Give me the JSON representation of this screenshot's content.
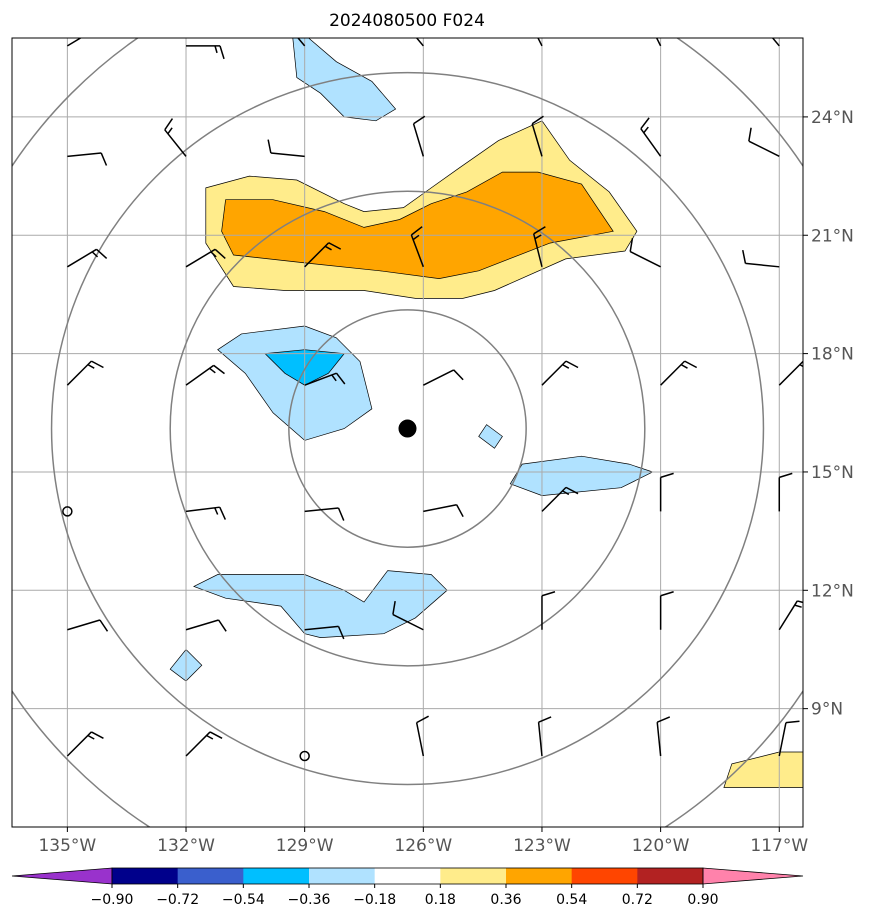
{
  "chart_data": {
    "type": "contour-map",
    "title": "2024080500 F024",
    "x_ticks": [
      {
        "lon": -135,
        "label": "135°W"
      },
      {
        "lon": -132,
        "label": "132°W"
      },
      {
        "lon": -129,
        "label": "129°W"
      },
      {
        "lon": -126,
        "label": "126°W"
      },
      {
        "lon": -123,
        "label": "123°W"
      },
      {
        "lon": -120,
        "label": "120°W"
      },
      {
        "lon": -117,
        "label": "117°W"
      }
    ],
    "y_ticks": [
      {
        "lat": 24,
        "label": "24°N"
      },
      {
        "lat": 21,
        "label": "21°N"
      },
      {
        "lat": 18,
        "label": "18°N"
      },
      {
        "lat": 15,
        "label": "15°N"
      },
      {
        "lat": 12,
        "label": "12°N"
      },
      {
        "lat": 9,
        "label": "9°N"
      }
    ],
    "lon_range": [
      -136.4,
      -116.4
    ],
    "lat_range": [
      6.0,
      26.0
    ],
    "grid": true,
    "center_marker": {
      "lon": -126.4,
      "lat": 16.1
    },
    "range_rings_deg": [
      3,
      6,
      9,
      12
    ],
    "colorbar": {
      "levels": [
        "−0.90",
        "−0.72",
        "−0.54",
        "−0.36",
        "−0.18",
        "0.18",
        "0.36",
        "0.54",
        "0.72",
        "0.90"
      ],
      "colors": [
        "#9932cc",
        "#00008b",
        "#3a5fcd",
        "#00bfff",
        "#b0e2ff",
        "#ffffff",
        "#ffec8b",
        "#ffa500",
        "#ff4500",
        "#b22222",
        "#ff82ab"
      ],
      "extend": "both"
    },
    "filled_regions": [
      {
        "level": "0.18 to 0.36",
        "color": "#ffec8b",
        "lonlat": [
          [
            -131.5,
            22.2
          ],
          [
            -130.4,
            22.5
          ],
          [
            -129.2,
            22.4
          ],
          [
            -128.0,
            21.8
          ],
          [
            -127.5,
            21.6
          ],
          [
            -126.5,
            21.7
          ],
          [
            -125.8,
            22.2
          ],
          [
            -125.1,
            22.7
          ],
          [
            -124.1,
            23.4
          ],
          [
            -123.0,
            23.9
          ],
          [
            -122.3,
            22.9
          ],
          [
            -121.3,
            22.1
          ],
          [
            -120.6,
            21.1
          ],
          [
            -120.9,
            20.6
          ],
          [
            -122.4,
            20.4
          ],
          [
            -124.2,
            19.6
          ],
          [
            -125.0,
            19.4
          ],
          [
            -126.2,
            19.4
          ],
          [
            -127.5,
            19.6
          ],
          [
            -129.5,
            19.6
          ],
          [
            -130.8,
            19.7
          ],
          [
            -131.5,
            20.8
          ]
        ]
      },
      {
        "level": "0.36 to 0.54",
        "color": "#ffa500",
        "lonlat": [
          [
            -131.0,
            21.9
          ],
          [
            -129.8,
            21.9
          ],
          [
            -128.5,
            21.6
          ],
          [
            -127.5,
            21.2
          ],
          [
            -126.6,
            21.4
          ],
          [
            -125.8,
            21.8
          ],
          [
            -124.9,
            22.1
          ],
          [
            -124.0,
            22.6
          ],
          [
            -123.1,
            22.6
          ],
          [
            -122.0,
            22.3
          ],
          [
            -121.2,
            21.1
          ],
          [
            -122.8,
            20.8
          ],
          [
            -124.6,
            20.1
          ],
          [
            -125.6,
            19.9
          ],
          [
            -127.1,
            20.1
          ],
          [
            -129.0,
            20.3
          ],
          [
            -130.8,
            20.5
          ],
          [
            -131.1,
            21.1
          ]
        ]
      },
      {
        "level": "-0.36 to -0.18",
        "color": "#b0e2ff",
        "lonlat": [
          [
            -128.9,
            26.0
          ],
          [
            -128.2,
            25.4
          ],
          [
            -127.3,
            24.9
          ],
          [
            -126.7,
            24.2
          ],
          [
            -127.2,
            23.9
          ],
          [
            -128.0,
            24.0
          ],
          [
            -128.6,
            24.6
          ],
          [
            -129.2,
            25.0
          ],
          [
            -129.3,
            26.0
          ]
        ]
      },
      {
        "level": "-0.36 to -0.18",
        "color": "#b0e2ff",
        "lonlat": [
          [
            -131.2,
            18.1
          ],
          [
            -130.6,
            18.5
          ],
          [
            -129.0,
            18.7
          ],
          [
            -128.2,
            18.4
          ],
          [
            -127.6,
            17.8
          ],
          [
            -127.3,
            16.6
          ],
          [
            -128.0,
            16.1
          ],
          [
            -129.0,
            15.8
          ],
          [
            -129.8,
            16.5
          ],
          [
            -130.5,
            17.5
          ]
        ]
      },
      {
        "level": "-0.54 to -0.36",
        "color": "#00bfff",
        "lonlat": [
          [
            -130.0,
            18.0
          ],
          [
            -129.0,
            18.1
          ],
          [
            -128.0,
            18.0
          ],
          [
            -128.4,
            17.5
          ],
          [
            -129.0,
            17.2
          ],
          [
            -129.5,
            17.5
          ]
        ]
      },
      {
        "level": "-0.36 to -0.18",
        "color": "#b0e2ff",
        "lonlat": [
          [
            -124.4,
            16.2
          ],
          [
            -124.0,
            15.9
          ],
          [
            -124.2,
            15.6
          ],
          [
            -124.6,
            15.9
          ]
        ]
      },
      {
        "level": "-0.36 to -0.18",
        "color": "#b0e2ff",
        "lonlat": [
          [
            -123.5,
            15.2
          ],
          [
            -122.0,
            15.4
          ],
          [
            -120.8,
            15.2
          ],
          [
            -120.2,
            15.0
          ],
          [
            -121.0,
            14.6
          ],
          [
            -123.0,
            14.4
          ],
          [
            -123.8,
            14.7
          ]
        ]
      },
      {
        "level": "-0.36 to -0.18",
        "color": "#b0e2ff",
        "lonlat": [
          [
            -131.8,
            12.1
          ],
          [
            -131.2,
            12.4
          ],
          [
            -129.0,
            12.4
          ],
          [
            -128.0,
            12.0
          ],
          [
            -127.5,
            11.7
          ],
          [
            -126.9,
            12.5
          ],
          [
            -125.8,
            12.4
          ],
          [
            -125.4,
            12.0
          ],
          [
            -126.2,
            11.3
          ],
          [
            -127.0,
            10.9
          ],
          [
            -128.6,
            10.8
          ],
          [
            -129.0,
            10.9
          ],
          [
            -129.6,
            11.6
          ],
          [
            -131.0,
            11.8
          ]
        ]
      },
      {
        "level": "-0.36 to -0.18",
        "color": "#b0e2ff",
        "lonlat": [
          [
            -132.0,
            10.5
          ],
          [
            -131.6,
            10.1
          ],
          [
            -132.0,
            9.7
          ],
          [
            -132.4,
            10.0
          ]
        ]
      },
      {
        "level": "0.18 to 0.36",
        "color": "#ffec8b",
        "lonlat": [
          [
            -118.2,
            7.6
          ],
          [
            -117.0,
            7.9
          ],
          [
            -116.4,
            7.9
          ],
          [
            -116.4,
            7.0
          ],
          [
            -118.4,
            7.0
          ]
        ]
      }
    ],
    "wind_barbs": [
      {
        "lon": -135,
        "lat": 25.8,
        "u": 5,
        "v": 3
      },
      {
        "lon": -132,
        "lat": 25.8,
        "u": 5,
        "v": 0
      },
      {
        "lon": -129,
        "lat": 25.8,
        "u": -5,
        "v": 6
      },
      {
        "lon": -126,
        "lat": 25.8,
        "u": -5,
        "v": 6
      },
      {
        "lon": -123,
        "lat": 25.8,
        "u": -4,
        "v": 8
      },
      {
        "lon": -120,
        "lat": 25.8,
        "u": -4,
        "v": 8
      },
      {
        "lon": -117,
        "lat": 25.8,
        "u": -5,
        "v": 6
      },
      {
        "lon": -135,
        "lat": 23.0,
        "u": 10,
        "v": 1
      },
      {
        "lon": -132,
        "lat": 23.0,
        "u": -4,
        "v": 5
      },
      {
        "lon": -129,
        "lat": 23.0,
        "u": -10,
        "v": 1
      },
      {
        "lon": -126,
        "lat": 23.0,
        "u": -3,
        "v": 10
      },
      {
        "lon": -123,
        "lat": 23.0,
        "u": -3,
        "v": 10
      },
      {
        "lon": -120,
        "lat": 23.0,
        "u": -5,
        "v": 7
      },
      {
        "lon": -117,
        "lat": 23.0,
        "u": -10,
        "v": 5
      },
      {
        "lon": -135,
        "lat": 20.2,
        "u": 5,
        "v": 3
      },
      {
        "lon": -132,
        "lat": 20.2,
        "u": 5,
        "v": 3
      },
      {
        "lon": -129,
        "lat": 20.2,
        "u": 5,
        "v": 5
      },
      {
        "lon": -126,
        "lat": 20.2,
        "u": -3,
        "v": 8
      },
      {
        "lon": -123,
        "lat": 20.2,
        "u": -2,
        "v": 8
      },
      {
        "lon": -120,
        "lat": 20.2,
        "u": -10,
        "v": 5
      },
      {
        "lon": -117,
        "lat": 20.2,
        "u": -10,
        "v": 1
      },
      {
        "lon": -135,
        "lat": 17.2,
        "u": 5,
        "v": 5
      },
      {
        "lon": -132,
        "lat": 17.2,
        "u": 7,
        "v": 5
      },
      {
        "lon": -129,
        "lat": 17.2,
        "u": 8,
        "v": 3
      },
      {
        "lon": -126,
        "lat": 17.2,
        "u": 10,
        "v": 5
      },
      {
        "lon": -123,
        "lat": 17.2,
        "u": 5,
        "v": 5
      },
      {
        "lon": -120,
        "lat": 17.2,
        "u": 5,
        "v": 5
      },
      {
        "lon": -117,
        "lat": 17.2,
        "u": 5,
        "v": 5
      },
      {
        "lon": -135,
        "lat": 14.0,
        "u": 0,
        "v": 0
      },
      {
        "lon": -132,
        "lat": 14.0,
        "u": 8,
        "v": 1
      },
      {
        "lon": -129,
        "lat": 14.0,
        "u": 10,
        "v": 1
      },
      {
        "lon": -126,
        "lat": 14.0,
        "u": 10,
        "v": 2
      },
      {
        "lon": -123,
        "lat": 14.0,
        "u": 5,
        "v": 5
      },
      {
        "lon": -120,
        "lat": 14.0,
        "u": 0,
        "v": 10
      },
      {
        "lon": -117,
        "lat": 14.0,
        "u": 0,
        "v": 10
      },
      {
        "lon": -135,
        "lat": 11.0,
        "u": 10,
        "v": 3
      },
      {
        "lon": -132,
        "lat": 11.0,
        "u": 10,
        "v": 3
      },
      {
        "lon": -129,
        "lat": 11.0,
        "u": 10,
        "v": 1
      },
      {
        "lon": -126,
        "lat": 11.0,
        "u": -10,
        "v": 5
      },
      {
        "lon": -123,
        "lat": 11.0,
        "u": 0,
        "v": 10
      },
      {
        "lon": -120,
        "lat": 11.0,
        "u": 0,
        "v": 10
      },
      {
        "lon": -117,
        "lat": 11.0,
        "u": 5,
        "v": 8
      },
      {
        "lon": -135,
        "lat": 7.8,
        "u": 5,
        "v": 5
      },
      {
        "lon": -132,
        "lat": 7.8,
        "u": 5,
        "v": 5
      },
      {
        "lon": -129,
        "lat": 7.8,
        "u": 0,
        "v": 0
      },
      {
        "lon": -126,
        "lat": 7.8,
        "u": -2,
        "v": 10
      },
      {
        "lon": -123,
        "lat": 7.8,
        "u": -1,
        "v": 10
      },
      {
        "lon": -120,
        "lat": 7.8,
        "u": -1,
        "v": 10
      },
      {
        "lon": -117,
        "lat": 7.8,
        "u": 2,
        "v": 10
      }
    ]
  }
}
